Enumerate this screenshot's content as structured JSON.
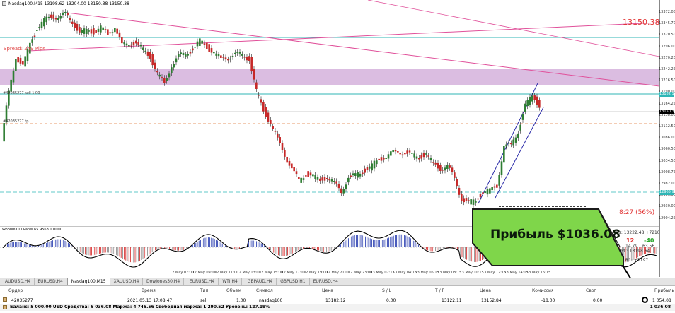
{
  "window": {
    "title": "Nasdaq100,M15  13198.62 13204.00 13150.38 13150.38",
    "close_glyph": "×"
  },
  "overlay": {
    "spread_label": "Spread: 249 Pips",
    "price_tag": "13150.38",
    "timer": "8:27 (56%)",
    "profit_card_text": "Прибыль $1036.08",
    "hline_left_1": "#42035277 sell 1.00",
    "hline_left_2": "#42035277 tp"
  },
  "y_axis": {
    "ticks": [
      "13372.08",
      "13345.70",
      "13320.50",
      "13296.00",
      "13270.20",
      "13242.25",
      "13216.50",
      "13190.00",
      "13164.25",
      "13138.00",
      "13112.50",
      "13086.00",
      "13060.50",
      "13034.50",
      "13008.75",
      "12982.00",
      "12956.50",
      "12930.00",
      "12904.25"
    ],
    "highlighted": [
      {
        "label": "13182.12",
        "color": "#2fb6b6"
      },
      {
        "label": "13150.38",
        "color": "#000000"
      },
      {
        "label": "12965.96",
        "color": "#2fb6b6"
      }
    ]
  },
  "x_axis": {
    "labels": [
      "12 May 07:00",
      "12 May 09:00",
      "12 May 11:00",
      "12 May 13:00",
      "12 May 15:00",
      "12 May 17:00",
      "12 May 19:00",
      "12 May 21:00",
      "12 May 23:00",
      "13 May 02:15",
      "13 May 04:15",
      "13 May 06:15",
      "13 May 08:15",
      "13 May 10:15",
      "13 May 12:15",
      "13 May 14:15",
      "13 May 16:15"
    ]
  },
  "cci": {
    "title": "Woodie CCI Panel 65.9568 0.0000",
    "side_lines": [
      "Os: 13222.48 +7210",
      "12",
      "-40",
      "14.79",
      "63.56",
      "PC: 13198.64",
      "R1: +7197"
    ]
  },
  "tabs": [
    {
      "label": "AUDUSD,H4",
      "active": false
    },
    {
      "label": "EURUSD,H4",
      "active": false
    },
    {
      "label": "Nasdaq100,M15",
      "active": true
    },
    {
      "label": "XAUUSD,H4",
      "active": false
    },
    {
      "label": "DowJones30,H4",
      "active": false
    },
    {
      "label": "EURUSD,H4",
      "active": false
    },
    {
      "label": "WTI,H4",
      "active": false
    },
    {
      "label": "GBPAUD,H4",
      "active": false
    },
    {
      "label": "GBPUSD,H1",
      "active": false
    },
    {
      "label": "EURUSD,H4",
      "active": false
    }
  ],
  "terminal": {
    "headers": [
      "Ордер",
      "Время",
      "Тип",
      "Объем",
      "Символ",
      "Цена",
      "S / L",
      "T / P",
      "Цена",
      "Комиссия",
      "Своп",
      "Прибыль"
    ],
    "row": [
      "42035277",
      "2021.05.13 17:08:47",
      "sell",
      "1.00",
      "nasdaq100",
      "13182.12",
      "0.00",
      "13122.11",
      "13152.84",
      "-18.00",
      "0.00",
      "1 054.08"
    ],
    "balance_text": "Баланс: 5 000.00 USD  Средства: 6 036.08  Маржа: 4 745.56  Свободная маржа: 1 290.52  Уровень: 127.19%",
    "balance_total": "1 036.08"
  },
  "colors": {
    "bull_candle": "#2e7d32",
    "bear_candle": "#c62828",
    "purple_zone": "#d7b6de",
    "trend_magenta": "#e0509a",
    "channel_blue": "#2a2aa8",
    "teal_line": "#2fb6b6",
    "profit_card_green": "#7fd64a"
  }
}
